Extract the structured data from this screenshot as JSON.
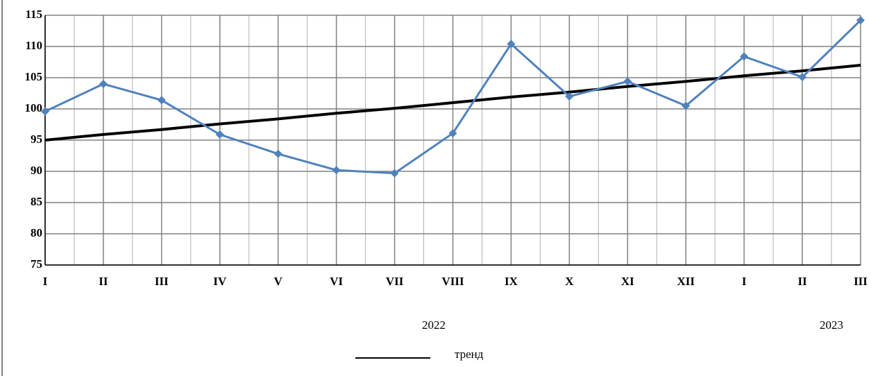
{
  "chart_data": {
    "type": "line",
    "categories": [
      "I",
      "II",
      "III",
      "IV",
      "V",
      "VI",
      "VII",
      "VIII",
      "IX",
      "X",
      "XI",
      "XII",
      "I",
      "II",
      "III"
    ],
    "group_labels": [
      "2022",
      "2023"
    ],
    "series": [
      {
        "color": "#4f81bd",
        "values": [
          99.6,
          104.0,
          101.4,
          95.9,
          92.8,
          90.2,
          89.7,
          96.1,
          110.4,
          102.0,
          104.4,
          100.5,
          108.4,
          105.1,
          114.2
        ]
      },
      {
        "name": "тренд",
        "color": "#000000",
        "values": [
          95.0,
          95.9,
          96.7,
          97.6,
          98.4,
          99.3,
          100.1,
          101.0,
          101.9,
          102.7,
          103.6,
          104.4,
          105.3,
          106.1,
          107.0
        ]
      }
    ],
    "ylim": [
      75,
      115
    ],
    "yticks": [
      75,
      80,
      85,
      90,
      95,
      100,
      105,
      110,
      115
    ],
    "grid": true
  }
}
